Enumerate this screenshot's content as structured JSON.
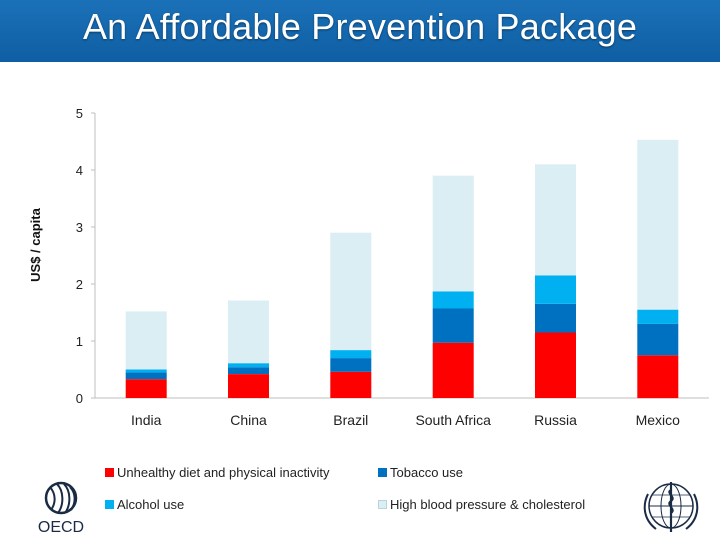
{
  "title": "An Affordable Prevention Package",
  "colors": {
    "header": "#1565ad",
    "unhealthy_diet": "#ff0000",
    "tobacco": "#0070c0",
    "alcohol": "#00b0f0",
    "blood_pressure": "#dbeef3"
  },
  "chart_data": {
    "type": "bar",
    "stacked": true,
    "title": "",
    "xlabel": "",
    "ylabel": "US$ / capita",
    "ylim": [
      0,
      5
    ],
    "yticks": [
      "0",
      "1",
      "2",
      "3",
      "4",
      "5"
    ],
    "categories": [
      "India",
      "China",
      "Brazil",
      "South Africa",
      "Russia",
      "Mexico"
    ],
    "series": [
      {
        "name": "Unhealthy diet and physical inactivity",
        "color": "#ff0000",
        "values": [
          0.33,
          0.42,
          0.46,
          0.97,
          1.15,
          0.75
        ]
      },
      {
        "name": "Tobacco use",
        "color": "#0070c0",
        "values": [
          0.12,
          0.12,
          0.24,
          0.6,
          0.5,
          0.55
        ]
      },
      {
        "name": "Alcohol use",
        "color": "#00b0f0",
        "values": [
          0.05,
          0.07,
          0.14,
          0.3,
          0.5,
          0.25
        ]
      },
      {
        "name": "High blood pressure & cholesterol",
        "color": "#dbeef3",
        "values": [
          1.02,
          1.1,
          2.06,
          2.03,
          1.95,
          2.98
        ]
      }
    ],
    "legend": "bottom",
    "grid": false
  },
  "logos": {
    "oecd": "OECD",
    "who": "World Health Organization emblem"
  }
}
